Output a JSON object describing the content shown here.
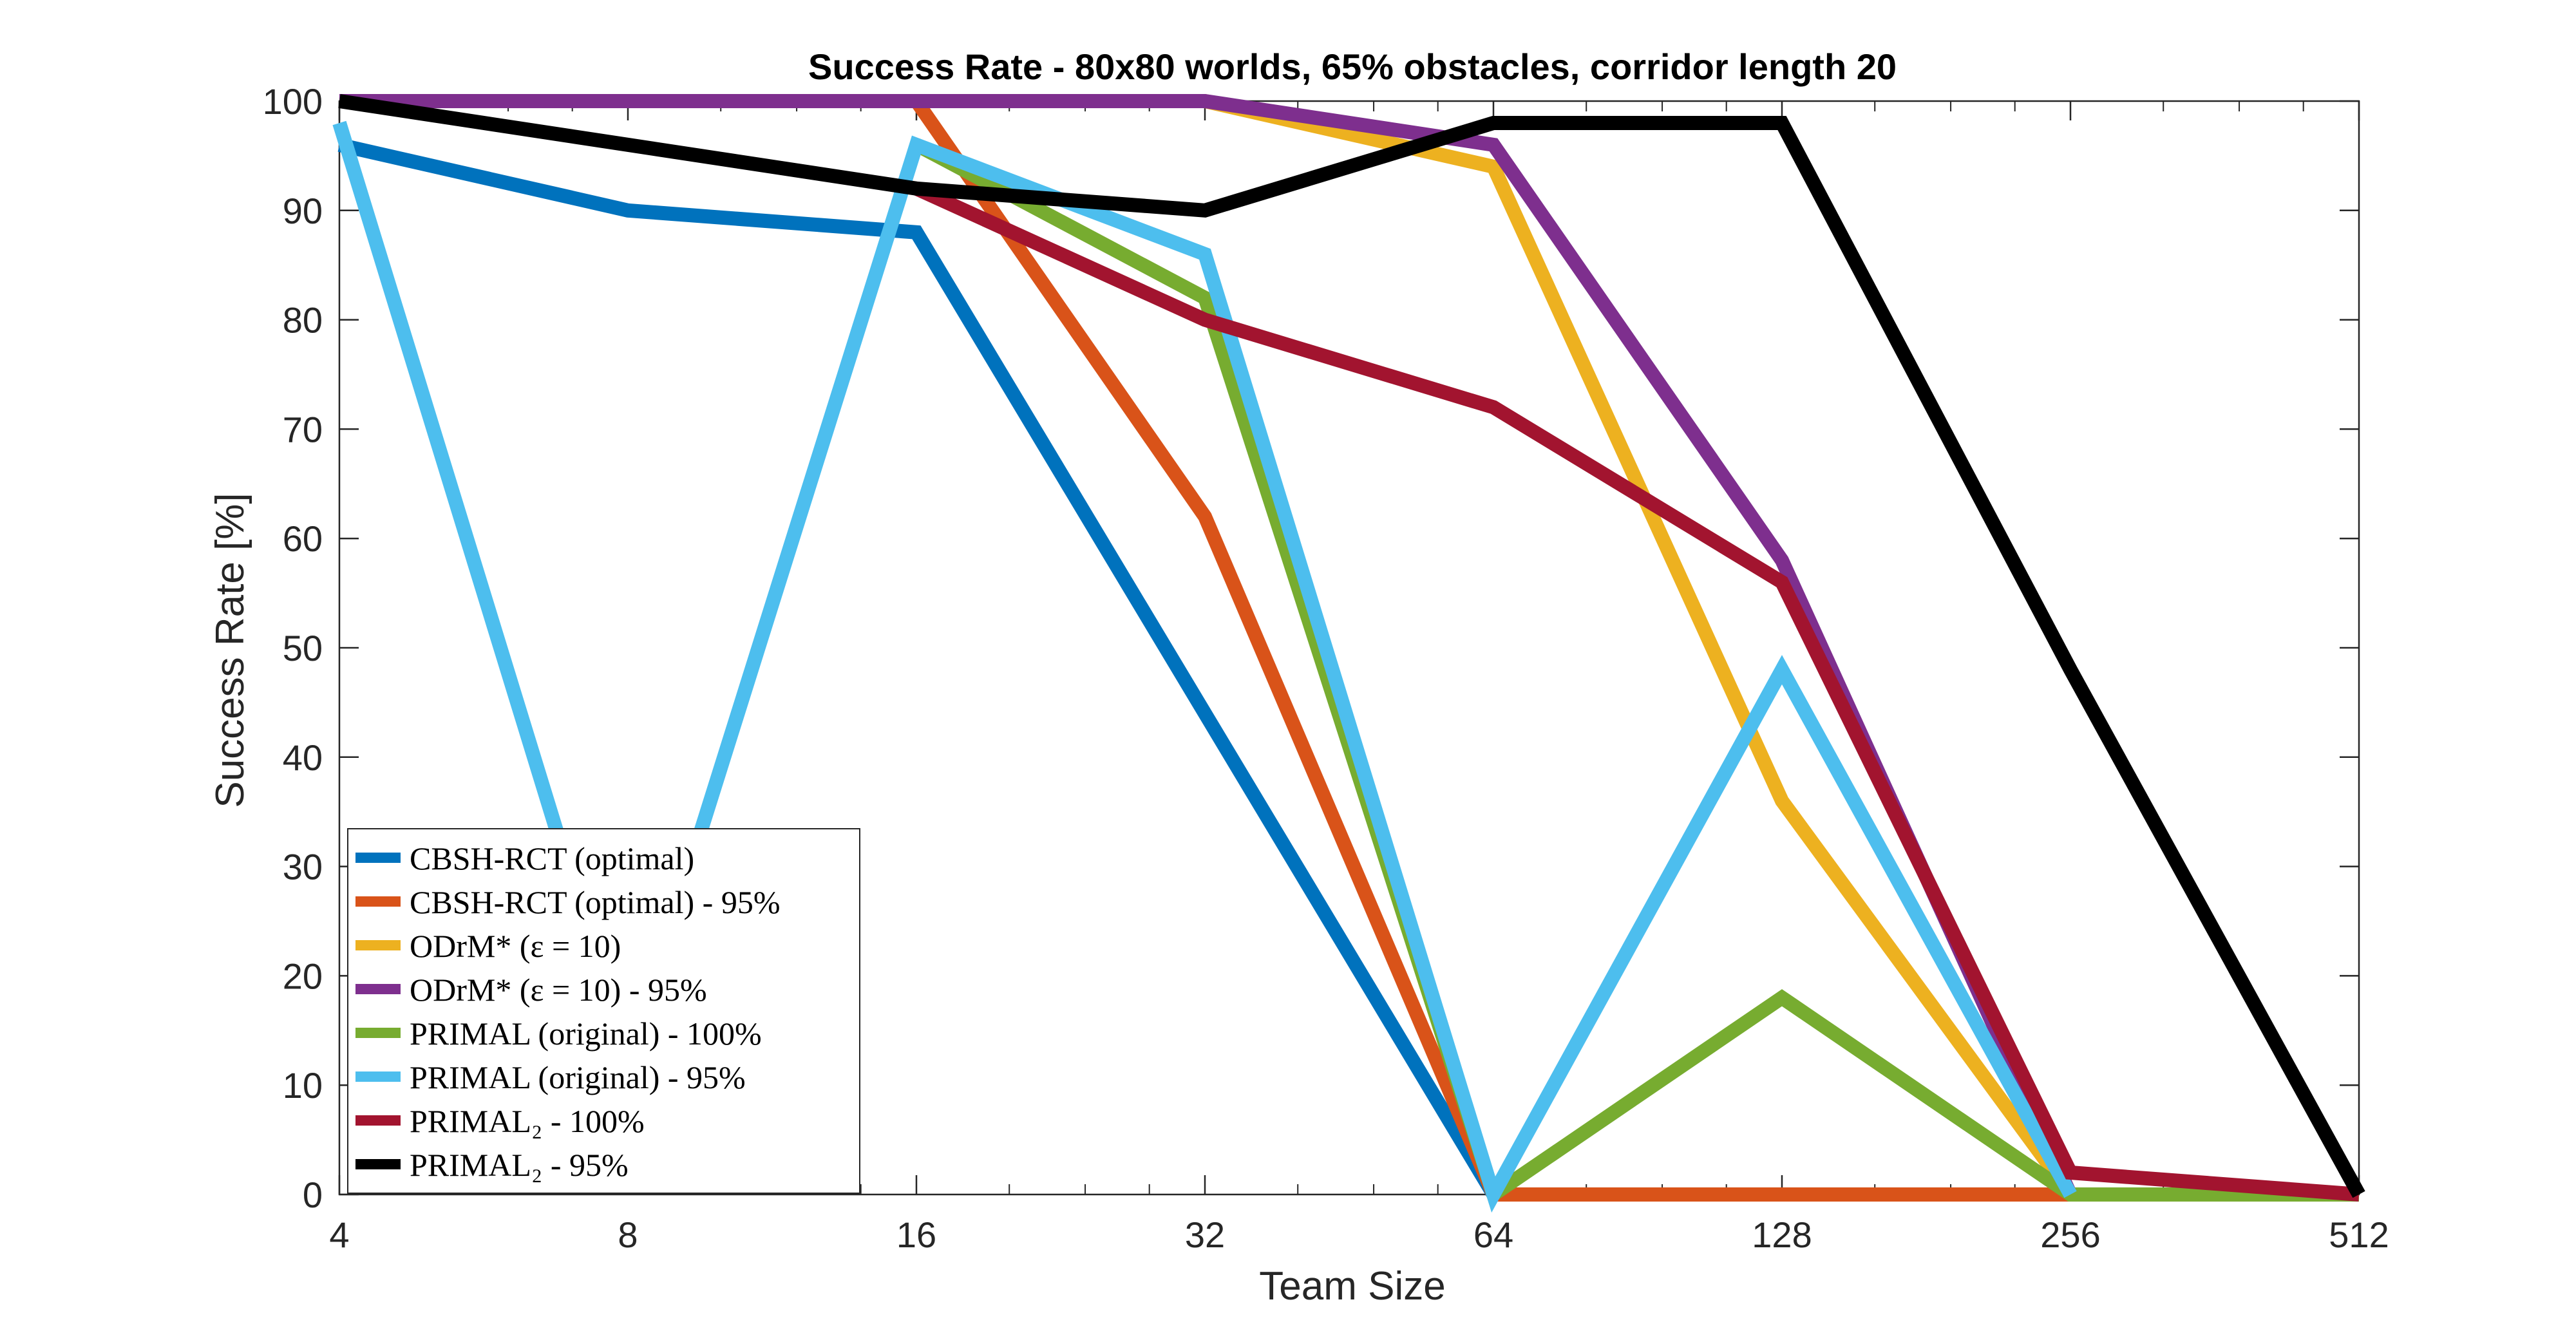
{
  "chart_data": {
    "type": "line",
    "title": "Success Rate - 80x80 worlds, 65% obstacles, corridor length 20",
    "xlabel": "Team Size",
    "ylabel": "Success Rate [%]",
    "x_scale": "log2",
    "x": [
      4,
      8,
      16,
      32,
      64,
      128,
      256,
      512
    ],
    "x_tick_labels": [
      "4",
      "8",
      "16",
      "32",
      "64",
      "128",
      "256",
      "512"
    ],
    "xlim": [
      4,
      512
    ],
    "ylim": [
      0,
      100
    ],
    "y_ticks": [
      0,
      10,
      20,
      30,
      40,
      50,
      60,
      70,
      80,
      90,
      100
    ],
    "y_tick_labels": [
      "0",
      "10",
      "20",
      "30",
      "40",
      "50",
      "60",
      "70",
      "80",
      "90",
      "100"
    ],
    "grid": false,
    "legend_position": "bottom-left",
    "series": [
      {
        "name": "CBSH-RCT (optimal)",
        "color": "#0072BD",
        "x": [
          4,
          8,
          16,
          64
        ],
        "values": [
          96,
          90,
          88,
          0
        ]
      },
      {
        "name": "CBSH-RCT (optimal) - 95%",
        "color": "#D95319",
        "x": [
          16,
          32,
          64,
          128,
          256
        ],
        "values": [
          100,
          62,
          0,
          0,
          0
        ]
      },
      {
        "name": "ODrM* (ε = 10)",
        "color": "#EDB120",
        "x": [
          4,
          8,
          16,
          32,
          64,
          128,
          256
        ],
        "values": [
          100,
          100,
          100,
          100,
          94,
          36,
          0
        ]
      },
      {
        "name": "ODrM* (ε = 10) - 95%",
        "color": "#7E2F8E",
        "x": [
          4,
          8,
          16,
          32,
          64,
          128,
          256
        ],
        "values": [
          100,
          100,
          100,
          100,
          96,
          58,
          0
        ]
      },
      {
        "name": "PRIMAL (original) - 100%",
        "color": "#77AC30",
        "x": [
          16,
          32,
          64,
          128,
          256,
          512
        ],
        "values": [
          96,
          82,
          0,
          18,
          0,
          0
        ]
      },
      {
        "name": "PRIMAL (original) - 95%",
        "color": "#4DBEEE",
        "x": [
          4,
          8,
          16,
          32,
          64,
          128,
          256
        ],
        "values": [
          98,
          12,
          96,
          86,
          0,
          48,
          0
        ]
      },
      {
        "name": "PRIMAL₂ - 100%",
        "color": "#A2142F",
        "x": [
          16,
          32,
          64,
          128,
          256,
          512
        ],
        "values": [
          92,
          80,
          72,
          56,
          2,
          0
        ]
      },
      {
        "name": "PRIMAL₂ - 95%",
        "color": "#000000",
        "x": [
          4,
          8,
          16,
          32,
          64,
          128,
          256,
          512
        ],
        "values": [
          100,
          96,
          92,
          90,
          98,
          98,
          48,
          0
        ]
      }
    ]
  }
}
